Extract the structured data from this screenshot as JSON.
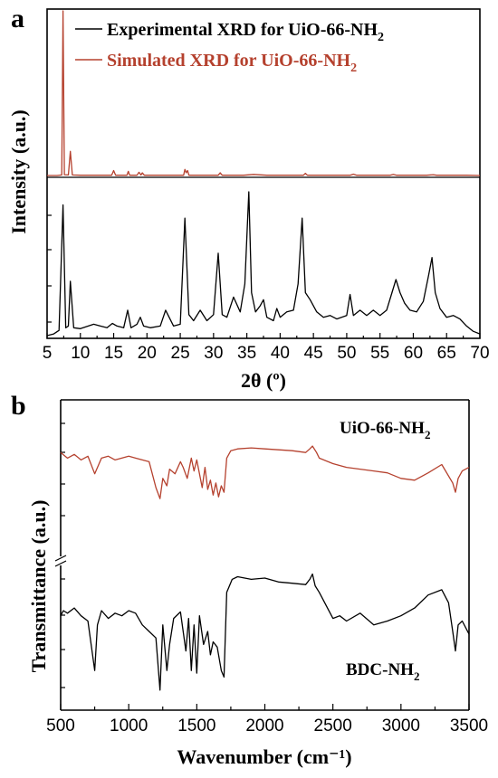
{
  "panel_a": {
    "label": "a",
    "legend": {
      "exp_prefix": "Experimental XRD for UiO-66-NH",
      "exp_sub": "2",
      "sim_prefix": "Simulated XRD for UiO-66-NH",
      "sim_sub": "2"
    }
  },
  "panel_b": {
    "label": "b",
    "ann_top_prefix": "UiO-66-NH",
    "ann_top_sub": "2",
    "ann_bottom_prefix": "BDC-NH",
    "ann_bottom_sub": "2"
  },
  "colors": {
    "simulated": "#b5412e",
    "experimental": "#000000",
    "uio_ftir": "#b5412e",
    "bdc_ftir": "#000000"
  },
  "chart_data": [
    {
      "type": "line",
      "xlabel": "2θ (º)",
      "ylabel": "Intensity (a.u.)",
      "xlim": [
        5,
        70
      ],
      "xticks": [
        5,
        10,
        15,
        20,
        25,
        30,
        35,
        40,
        45,
        50,
        55,
        60,
        65,
        70
      ],
      "series": [
        {
          "name": "Experimental XRD for UiO-66-NH2",
          "color": "#000000",
          "x": [
            5,
            6,
            6.8,
            7.4,
            7.8,
            8.2,
            8.5,
            9,
            10,
            12,
            13,
            14,
            14.8,
            15.5,
            16.5,
            17.1,
            17.6,
            18.5,
            19,
            19.5,
            20.5,
            22,
            22.8,
            24,
            25,
            25.7,
            26.3,
            27,
            28,
            29,
            30,
            30.7,
            31.3,
            32,
            33,
            34,
            34.7,
            35.3,
            35.7,
            36.3,
            37,
            37.5,
            38,
            39,
            39.5,
            40,
            41,
            42,
            42.7,
            43.3,
            43.8,
            44.5,
            45.5,
            46.5,
            47.5,
            48.5,
            50,
            50.5,
            51,
            52,
            53,
            54,
            55,
            56,
            56.8,
            57.4,
            58,
            58.7,
            59.5,
            60.5,
            61.5,
            62.3,
            62.8,
            63.3,
            64,
            65,
            66,
            67,
            68,
            69,
            70
          ],
          "y": [
            1,
            3,
            7,
            150,
            10,
            12,
            63,
            10,
            9,
            14,
            12,
            10,
            15,
            12,
            10,
            30,
            10,
            14,
            22,
            12,
            10,
            12,
            30,
            12,
            14,
            135,
            25,
            18,
            30,
            18,
            25,
            95,
            25,
            22,
            45,
            28,
            60,
            165,
            50,
            28,
            35,
            42,
            22,
            18,
            32,
            22,
            28,
            30,
            60,
            135,
            50,
            42,
            28,
            22,
            24,
            20,
            24,
            48,
            24,
            30,
            24,
            30,
            24,
            30,
            50,
            65,
            50,
            38,
            30,
            28,
            40,
            70,
            90,
            50,
            32,
            22,
            24,
            20,
            12,
            6,
            3
          ]
        },
        {
          "name": "Simulated XRD for UiO-66-NH2",
          "color": "#b5412e",
          "x": [
            5,
            6.5,
            7.2,
            7.4,
            7.6,
            8.2,
            8.5,
            8.8,
            10,
            13,
            14.7,
            15,
            15.3,
            17,
            17.2,
            17.4,
            18.5,
            18.8,
            19.1,
            19.3,
            19.6,
            22,
            24,
            25.5,
            25.7,
            25.9,
            26.1,
            26.3,
            28,
            29.5,
            30.7,
            31,
            31.3,
            33,
            34.5,
            36,
            38,
            40,
            42,
            43.5,
            43.8,
            44.1,
            46,
            48,
            50.5,
            51,
            51.5,
            54,
            56.5,
            57,
            57.5,
            60,
            62,
            63,
            63.5,
            64,
            66,
            68,
            70
          ],
          "y": [
            0,
            0,
            2,
            600,
            3,
            2,
            88,
            2,
            1,
            1,
            1,
            18,
            1,
            1,
            15,
            1,
            1,
            12,
            2,
            10,
            1,
            1,
            1,
            1,
            22,
            10,
            18,
            1,
            1,
            1,
            1,
            10,
            1,
            1,
            1,
            4,
            1,
            1,
            1,
            1,
            8,
            1,
            1,
            1,
            1,
            5,
            1,
            1,
            1,
            4,
            1,
            1,
            1,
            3,
            1,
            1,
            1,
            1,
            0
          ]
        }
      ]
    },
    {
      "type": "line",
      "xlabel": "Wavenumber (cm⁻¹)",
      "ylabel": "Transmittance (a.u.)",
      "xlim": [
        500,
        3500
      ],
      "xticks": [
        500,
        1000,
        1500,
        2000,
        2500,
        3000,
        3500
      ],
      "series": [
        {
          "name": "UiO-66-NH2",
          "color": "#b5412e",
          "x": [
            500,
            550,
            600,
            650,
            700,
            750,
            800,
            850,
            900,
            1000,
            1050,
            1100,
            1150,
            1200,
            1230,
            1250,
            1280,
            1300,
            1340,
            1380,
            1400,
            1430,
            1460,
            1480,
            1500,
            1540,
            1560,
            1580,
            1600,
            1620,
            1640,
            1660,
            1680,
            1700,
            1720,
            1750,
            1800,
            1900,
            2000,
            2100,
            2200,
            2300,
            2330,
            2350,
            2380,
            2400,
            2500,
            2600,
            2700,
            2800,
            2900,
            3000,
            3100,
            3200,
            3300,
            3380,
            3400,
            3420,
            3450,
            3500
          ],
          "y": [
            88,
            82,
            86,
            80,
            84,
            65,
            82,
            84,
            80,
            84,
            82,
            80,
            78,
            50,
            38,
            60,
            52,
            70,
            65,
            78,
            72,
            60,
            82,
            68,
            80,
            50,
            72,
            48,
            58,
            42,
            55,
            40,
            52,
            45,
            82,
            90,
            92,
            93,
            92,
            91,
            90,
            88,
            92,
            95,
            88,
            82,
            76,
            72,
            70,
            68,
            66,
            60,
            58,
            66,
            75,
            55,
            45,
            60,
            68,
            72
          ]
        },
        {
          "name": "BDC-NH2",
          "color": "#000000",
          "x": [
            500,
            520,
            550,
            600,
            650,
            700,
            750,
            770,
            800,
            850,
            900,
            950,
            1000,
            1050,
            1100,
            1150,
            1200,
            1230,
            1250,
            1280,
            1300,
            1330,
            1380,
            1420,
            1440,
            1460,
            1480,
            1500,
            1520,
            1550,
            1580,
            1600,
            1620,
            1650,
            1680,
            1700,
            1720,
            1760,
            1800,
            1900,
            2000,
            2100,
            2200,
            2300,
            2330,
            2350,
            2370,
            2400,
            2500,
            2550,
            2600,
            2700,
            2800,
            2900,
            3000,
            3100,
            3200,
            3300,
            3350,
            3380,
            3400,
            3420,
            3450,
            3500
          ],
          "y": [
            62,
            66,
            64,
            68,
            62,
            58,
            20,
            55,
            66,
            60,
            64,
            62,
            66,
            64,
            55,
            50,
            45,
            5,
            55,
            20,
            40,
            60,
            65,
            35,
            60,
            20,
            55,
            18,
            62,
            40,
            50,
            32,
            42,
            38,
            20,
            15,
            80,
            90,
            92,
            90,
            91,
            88,
            87,
            86,
            90,
            94,
            85,
            80,
            60,
            62,
            58,
            64,
            55,
            58,
            62,
            68,
            78,
            82,
            72,
            50,
            35,
            55,
            58,
            48
          ]
        }
      ]
    }
  ]
}
